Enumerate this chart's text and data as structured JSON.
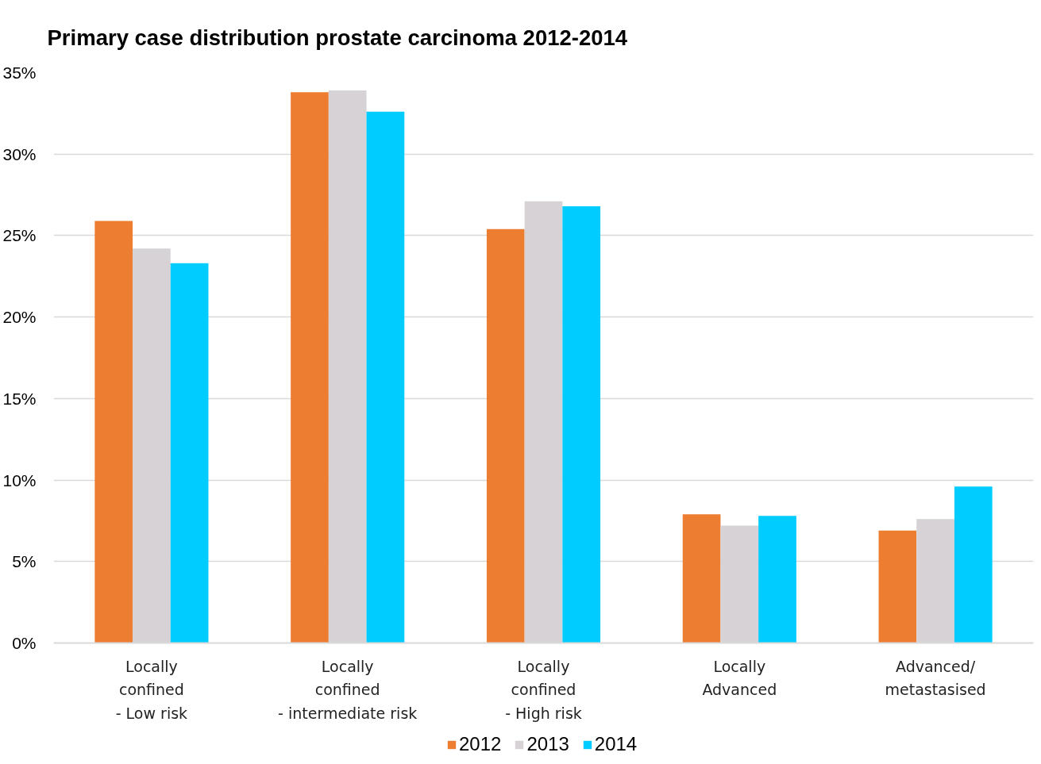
{
  "chart_data": {
    "type": "bar",
    "title": "Primary case distribution prostate carcinoma 2012-2014",
    "categories": [
      "Locally\nconfined\n- Low risk",
      "Locally\nconfined\n- intermediate risk",
      "Locally\nconfined\n- High risk",
      "Locally\nAdvanced",
      "Advanced/\nmetastasised"
    ],
    "series": [
      {
        "name": "2012",
        "color": "#ed7d31",
        "values": [
          25.9,
          33.8,
          25.4,
          7.9,
          6.9
        ]
      },
      {
        "name": "2013",
        "color": "#d6d2d6",
        "values": [
          24.2,
          33.9,
          27.1,
          7.2,
          7.6
        ]
      },
      {
        "name": "2014",
        "color": "#00ccff",
        "values": [
          23.3,
          32.6,
          26.8,
          7.8,
          9.6
        ]
      }
    ],
    "ylim": [
      0,
      35
    ],
    "yticks": [
      {
        "value": 0,
        "label": "0%"
      },
      {
        "value": 5,
        "label": "5%"
      },
      {
        "value": 10,
        "label": "10%"
      },
      {
        "value": 15,
        "label": "15%"
      },
      {
        "value": 20,
        "label": "20%"
      },
      {
        "value": 25,
        "label": "25%"
      },
      {
        "value": 30,
        "label": "30%"
      },
      {
        "value": 35,
        "label": "35%"
      }
    ],
    "grid": "y",
    "legend": "bottom"
  }
}
